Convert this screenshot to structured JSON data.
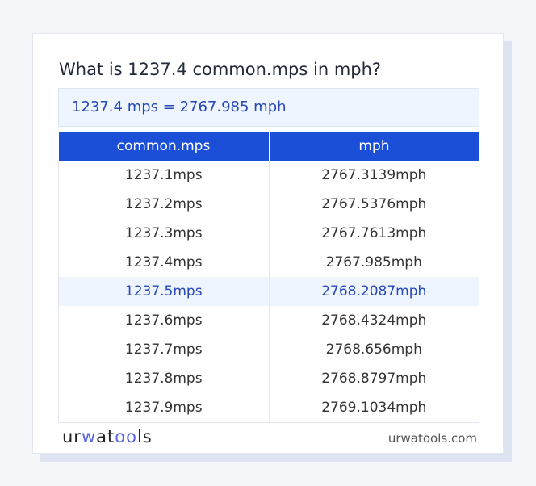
{
  "title": "What is 1237.4 common.mps in mph?",
  "result": "1237.4 mps = 2767.985 mph",
  "table": {
    "headers": [
      "common.mps",
      "mph"
    ],
    "rows": [
      [
        "1237.1mps",
        "2767.3139mph"
      ],
      [
        "1237.2mps",
        "2767.5376mph"
      ],
      [
        "1237.3mps",
        "2767.7613mph"
      ],
      [
        "1237.4mps",
        "2767.985mph"
      ],
      [
        "1237.5mps",
        "2768.2087mph"
      ],
      [
        "1237.6mps",
        "2768.4324mph"
      ],
      [
        "1237.7mps",
        "2768.656mph"
      ],
      [
        "1237.8mps",
        "2768.8797mph"
      ],
      [
        "1237.9mps",
        "2769.1034mph"
      ]
    ],
    "highlighted_row": 4
  },
  "footer": {
    "logo": "urwatools",
    "site": "urwatools.com"
  },
  "colors": {
    "accent": "#1c4fd8",
    "highlight_text": "#2647b8"
  }
}
